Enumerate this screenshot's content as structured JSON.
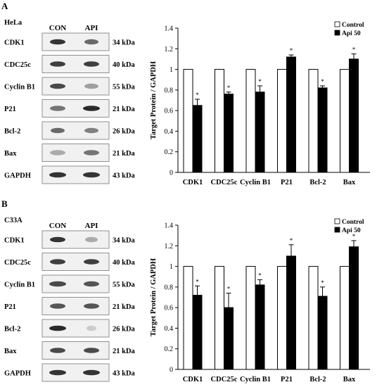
{
  "panels": [
    {
      "letter": "A",
      "cell_line": "HeLa",
      "lanes": [
        "CON",
        "API"
      ],
      "blots": [
        {
          "protein": "CDK1",
          "size": "34 kDa"
        },
        {
          "protein": "CDC25c",
          "size": "40 kDa"
        },
        {
          "protein": "Cyclin B1",
          "size": "55 kDa"
        },
        {
          "protein": "P21",
          "size": "21 kDa"
        },
        {
          "protein": "Bcl-2",
          "size": "26 kDa"
        },
        {
          "protein": "Bax",
          "size": "21 kDa"
        },
        {
          "protein": "GAPDH",
          "size": "43 kDa"
        }
      ]
    },
    {
      "letter": "B",
      "cell_line": "C33A",
      "lanes": [
        "CON",
        "API"
      ],
      "blots": [
        {
          "protein": "CDK1",
          "size": "34 kDa"
        },
        {
          "protein": "CDC25c",
          "size": "40 kDa"
        },
        {
          "protein": "Cyclin B1",
          "size": "55 kDa"
        },
        {
          "protein": "P21",
          "size": "21 kDa"
        },
        {
          "protein": "Bcl-2",
          "size": "26 kDa"
        },
        {
          "protein": "Bax",
          "size": "21 kDa"
        },
        {
          "protein": "GAPDH",
          "size": "43 kDa"
        }
      ]
    }
  ],
  "chart_data": [
    {
      "type": "bar",
      "ylabel": "Target Protein / GAPDH",
      "ylim": [
        0,
        1.4
      ],
      "yticks": [
        "0",
        "0.2",
        "0.4",
        "0.6",
        "0.8",
        "1",
        "1.2",
        "1.4"
      ],
      "categories": [
        "CDK1",
        "CDC25c",
        "Cyclin B1",
        "P21",
        "Bcl-2",
        "Bax"
      ],
      "legend_position": "top-right",
      "series": [
        {
          "name": "Control",
          "color": "#ffffff",
          "values": [
            1,
            1,
            1,
            1,
            1,
            1
          ],
          "errors": [
            0,
            0,
            0,
            0,
            0,
            0
          ]
        },
        {
          "name": "Api 50",
          "color": "#000000",
          "values": [
            0.65,
            0.76,
            0.78,
            1.12,
            0.82,
            1.1
          ],
          "errors": [
            0.06,
            0.02,
            0.06,
            0.02,
            0.02,
            0.05
          ]
        }
      ],
      "significance_mark": "*"
    },
    {
      "type": "bar",
      "ylabel": "Target Protein / GAPDH",
      "ylim": [
        0,
        1.4
      ],
      "yticks": [
        "0",
        "0.2",
        "0.4",
        "0.6",
        "0.8",
        "1",
        "1.2",
        "1.4"
      ],
      "categories": [
        "CDK1",
        "CDC25c",
        "Cyclin B1",
        "P21",
        "Bcl-2",
        "Bax"
      ],
      "legend_position": "top-right",
      "series": [
        {
          "name": "Control",
          "color": "#ffffff",
          "values": [
            1,
            1,
            1,
            1,
            1,
            1
          ],
          "errors": [
            0,
            0,
            0,
            0,
            0,
            0
          ]
        },
        {
          "name": "Api 50",
          "color": "#000000",
          "values": [
            0.72,
            0.6,
            0.82,
            1.1,
            0.71,
            1.19
          ],
          "errors": [
            0.09,
            0.14,
            0.05,
            0.11,
            0.09,
            0.06
          ]
        }
      ],
      "significance_mark": "*"
    }
  ]
}
